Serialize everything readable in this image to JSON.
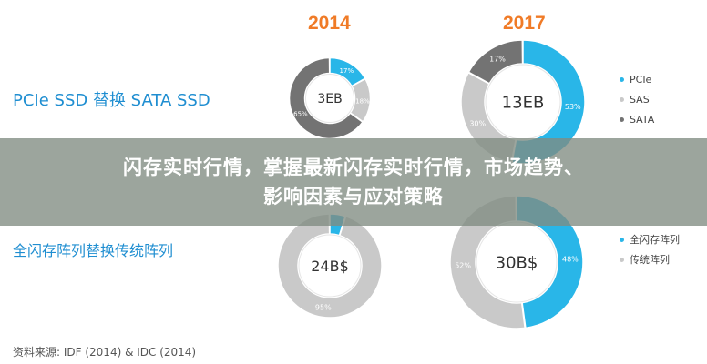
{
  "years": [
    "2014",
    "2017"
  ],
  "rows": [
    {
      "label": "PCIe SSD 替换 SATA SSD"
    },
    {
      "label": "全闪存阵列替换传统阵列"
    }
  ],
  "legend_top": [
    {
      "label": "PCIe",
      "color": "#29b6e8"
    },
    {
      "label": "SAS",
      "color": "#c9c9c9"
    },
    {
      "label": "SATA",
      "color": "#737373"
    }
  ],
  "legend_bottom": [
    {
      "label": "全闪存阵列",
      "color": "#29b6e8"
    },
    {
      "label": "传统阵列",
      "color": "#c9c9c9"
    }
  ],
  "source": "资料来源: IDF (2014) & IDC (2014)",
  "banner": {
    "line1": "闪存实时行情，掌握最新闪存实时行情，市场趋势、",
    "line2": "影响因素与应对策略"
  },
  "chart_data": [
    {
      "type": "pie",
      "title": "2014",
      "center_label": "3EB",
      "slices": [
        {
          "label": "PCIe",
          "value": 17,
          "text": "17%",
          "color": "#29b6e8"
        },
        {
          "label": "SAS",
          "value": 18,
          "text": "18%",
          "color": "#c9c9c9"
        },
        {
          "label": "SATA",
          "value": 65,
          "text": "65%",
          "color": "#737373"
        }
      ]
    },
    {
      "type": "pie",
      "title": "2017",
      "center_label": "13EB",
      "slices": [
        {
          "label": "PCIe",
          "value": 53,
          "text": "53%",
          "color": "#29b6e8"
        },
        {
          "label": "SAS",
          "value": 30,
          "text": "30%",
          "color": "#c9c9c9"
        },
        {
          "label": "SATA",
          "value": 17,
          "text": "17%",
          "color": "#737373"
        }
      ]
    },
    {
      "type": "pie",
      "title": "2014",
      "center_label": "24B$",
      "slices": [
        {
          "label": "全闪存阵列",
          "value": 5,
          "text": "",
          "color": "#29b6e8"
        },
        {
          "label": "传统阵列",
          "value": 95,
          "text": "95%",
          "color": "#c9c9c9"
        }
      ]
    },
    {
      "type": "pie",
      "title": "2017",
      "center_label": "30B$",
      "slices": [
        {
          "label": "全闪存阵列",
          "value": 48,
          "text": "48%",
          "color": "#29b6e8"
        },
        {
          "label": "传统阵列",
          "value": 52,
          "text": "52%",
          "color": "#c9c9c9"
        }
      ]
    }
  ]
}
